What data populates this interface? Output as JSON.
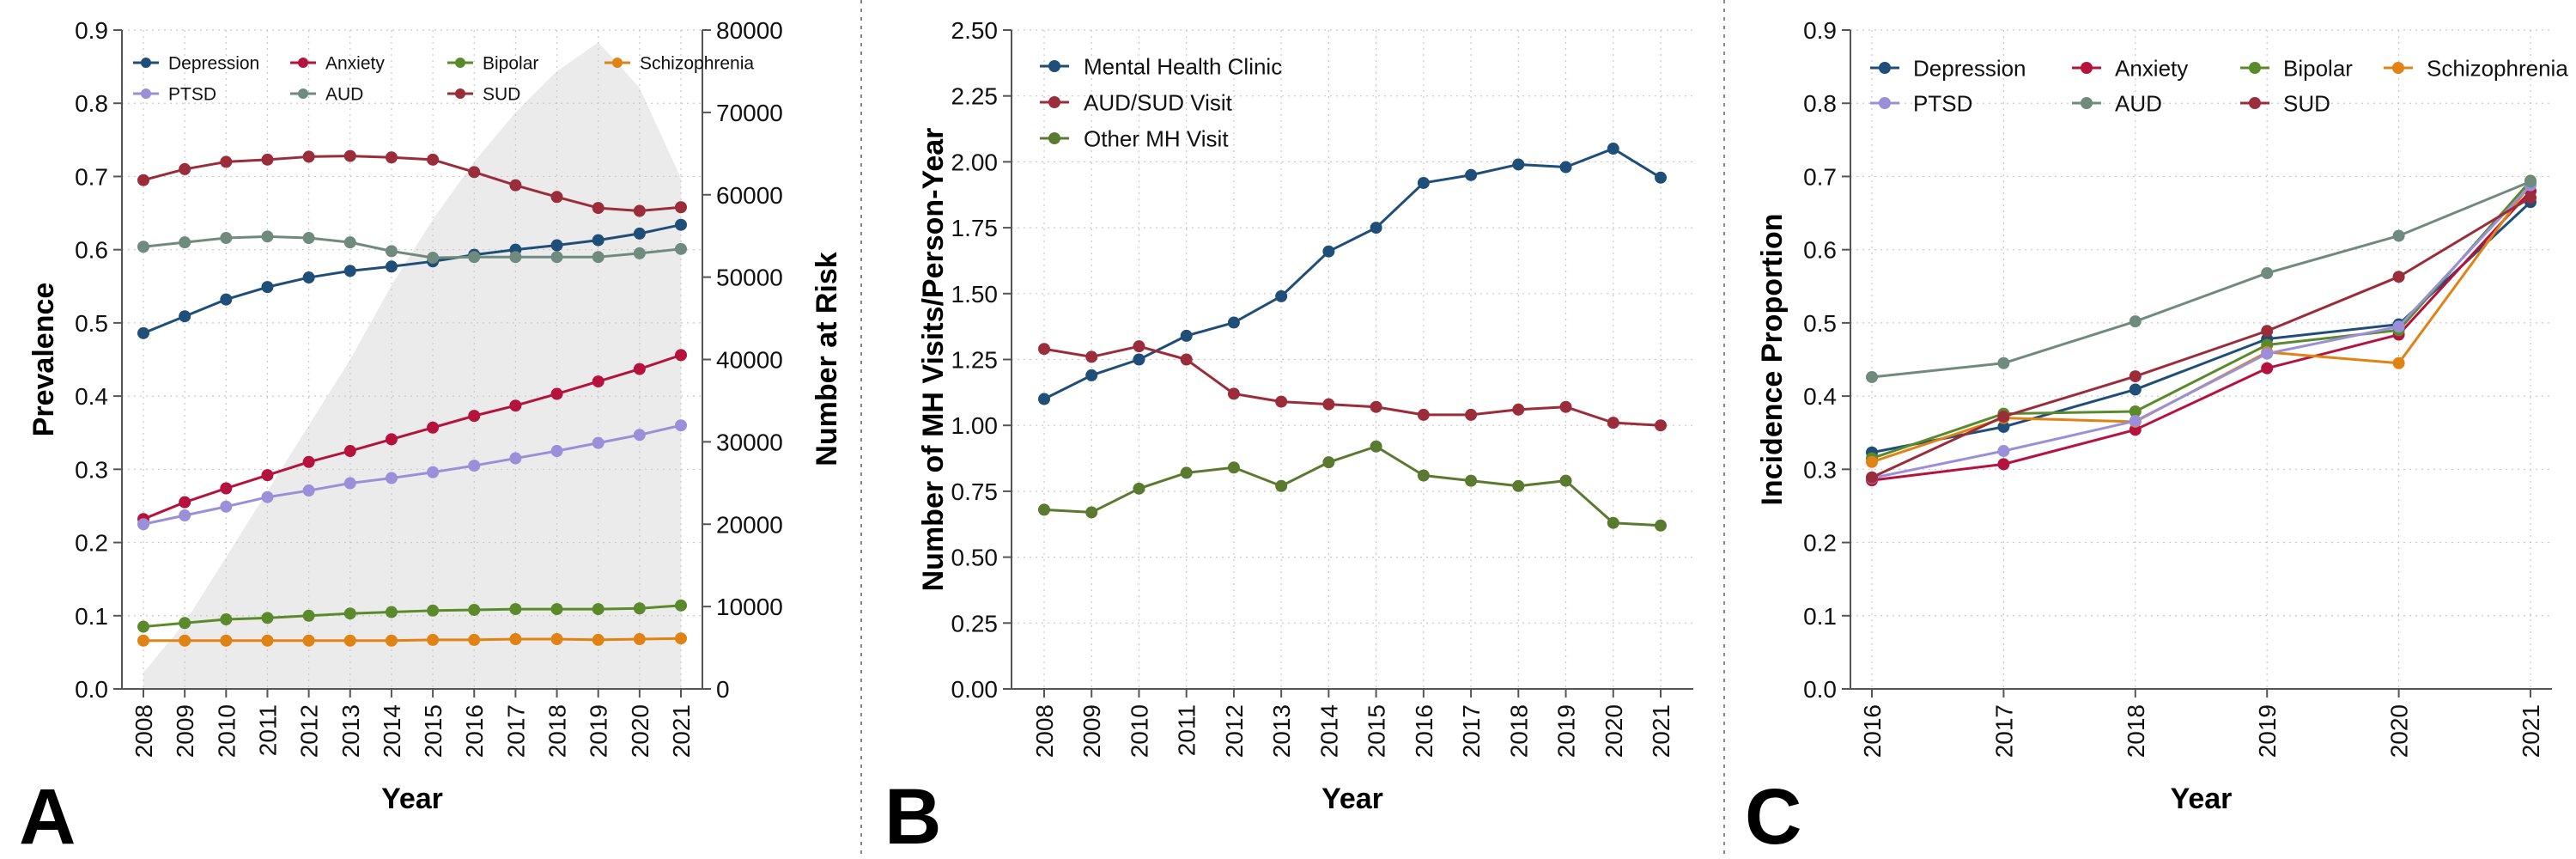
{
  "chart_data": [
    {
      "panel": "A",
      "type": "line",
      "xlabel": "Year",
      "ylabel": "Prevalence",
      "y2label": "Number at Risk",
      "x": [
        2008,
        2009,
        2010,
        2011,
        2012,
        2013,
        2014,
        2015,
        2016,
        2017,
        2018,
        2019,
        2020,
        2021
      ],
      "ylim": [
        0,
        0.9
      ],
      "yticks": [
        "0.0",
        "0.1",
        "0.2",
        "0.3",
        "0.4",
        "0.5",
        "0.6",
        "0.7",
        "0.8",
        "0.9"
      ],
      "y2lim": [
        0,
        80000
      ],
      "y2ticks": [
        "0",
        "10000",
        "20000",
        "30000",
        "40000",
        "50000",
        "60000",
        "70000",
        "80000"
      ],
      "grid": true,
      "legend_position": "top",
      "legend_columns": 4,
      "at_risk": {
        "name": "Number at Risk",
        "color": "#ebebeb",
        "values": [
          2000,
          8000,
          16000,
          24000,
          32000,
          40000,
          49000,
          57000,
          64000,
          70000,
          75000,
          78500,
          73000,
          62000
        ]
      },
      "series": [
        {
          "name": "Depression",
          "color": "#1f4e79",
          "values": [
            0.486,
            0.509,
            0.532,
            0.549,
            0.562,
            0.571,
            0.577,
            0.584,
            0.593,
            0.6,
            0.606,
            0.613,
            0.622,
            0.634
          ]
        },
        {
          "name": "Anxiety",
          "color": "#b5123e",
          "values": [
            0.232,
            0.255,
            0.274,
            0.292,
            0.31,
            0.325,
            0.341,
            0.357,
            0.373,
            0.387,
            0.403,
            0.42,
            0.437,
            0.456
          ]
        },
        {
          "name": "Bipolar",
          "color": "#5a8a2b",
          "values": [
            0.085,
            0.09,
            0.095,
            0.097,
            0.1,
            0.103,
            0.105,
            0.107,
            0.108,
            0.109,
            0.109,
            0.109,
            0.11,
            0.114
          ]
        },
        {
          "name": "Schizophrenia",
          "color": "#e08214",
          "values": [
            0.066,
            0.066,
            0.066,
            0.066,
            0.066,
            0.066,
            0.066,
            0.067,
            0.067,
            0.068,
            0.068,
            0.067,
            0.068,
            0.069
          ]
        },
        {
          "name": "PTSD",
          "color": "#9a8fd8",
          "values": [
            0.225,
            0.237,
            0.249,
            0.262,
            0.271,
            0.281,
            0.288,
            0.296,
            0.305,
            0.315,
            0.325,
            0.336,
            0.347,
            0.36
          ]
        },
        {
          "name": "AUD",
          "color": "#6e8b7e",
          "values": [
            0.604,
            0.61,
            0.616,
            0.618,
            0.616,
            0.61,
            0.598,
            0.589,
            0.59,
            0.59,
            0.59,
            0.59,
            0.595,
            0.601
          ]
        },
        {
          "name": "SUD",
          "color": "#9b2d3a",
          "values": [
            0.695,
            0.71,
            0.72,
            0.723,
            0.727,
            0.728,
            0.726,
            0.723,
            0.706,
            0.688,
            0.672,
            0.657,
            0.653,
            0.658
          ]
        }
      ]
    },
    {
      "panel": "B",
      "type": "line",
      "xlabel": "Year",
      "ylabel": "Number of MH Visits/Person-Year",
      "x": [
        2008,
        2009,
        2010,
        2011,
        2012,
        2013,
        2014,
        2015,
        2016,
        2017,
        2018,
        2019,
        2020,
        2021
      ],
      "ylim": [
        0,
        2.5
      ],
      "yticks": [
        "0.00",
        "0.25",
        "0.50",
        "0.75",
        "1.00",
        "1.25",
        "1.50",
        "1.75",
        "2.00",
        "2.25",
        "2.50"
      ],
      "grid": true,
      "legend_position": "top-left",
      "legend_columns": 1,
      "series": [
        {
          "name": "Mental Health Clinic",
          "color": "#1f4e79",
          "values": [
            1.1,
            1.19,
            1.25,
            1.34,
            1.39,
            1.49,
            1.66,
            1.75,
            1.92,
            1.95,
            1.99,
            1.98,
            2.05,
            1.94
          ]
        },
        {
          "name": "AUD/SUD Visit",
          "color": "#9b2d3a",
          "values": [
            1.29,
            1.26,
            1.3,
            1.25,
            1.12,
            1.09,
            1.08,
            1.07,
            1.04,
            1.04,
            1.06,
            1.07,
            1.01,
            1.0
          ]
        },
        {
          "name": "Other MH Visit",
          "color": "#5a7a30",
          "values": [
            0.68,
            0.67,
            0.76,
            0.82,
            0.84,
            0.77,
            0.86,
            0.92,
            0.81,
            0.79,
            0.77,
            0.79,
            0.63,
            0.62
          ]
        }
      ]
    },
    {
      "panel": "C",
      "type": "line",
      "xlabel": "Year",
      "ylabel": "Incidence Proportion",
      "x": [
        2016,
        2017,
        2018,
        2019,
        2020,
        2021
      ],
      "ylim": [
        0,
        0.9
      ],
      "yticks": [
        "0.0",
        "0.1",
        "0.2",
        "0.3",
        "0.4",
        "0.5",
        "0.6",
        "0.7",
        "0.8",
        "0.9"
      ],
      "grid": true,
      "legend_position": "top",
      "legend_columns": 4,
      "series": [
        {
          "name": "Depression",
          "color": "#1f4e79",
          "values": [
            0.323,
            0.358,
            0.409,
            0.478,
            0.498,
            0.665
          ]
        },
        {
          "name": "Anxiety",
          "color": "#b5123e",
          "values": [
            0.285,
            0.307,
            0.354,
            0.438,
            0.484,
            0.68
          ]
        },
        {
          "name": "Bipolar",
          "color": "#5a8a2b",
          "values": [
            0.315,
            0.376,
            0.379,
            0.47,
            0.49,
            0.694
          ]
        },
        {
          "name": "Schizophrenia",
          "color": "#e08214",
          "values": [
            0.31,
            0.37,
            0.365,
            0.46,
            0.445,
            0.69
          ]
        },
        {
          "name": "PTSD",
          "color": "#9a8fd8",
          "values": [
            0.288,
            0.325,
            0.366,
            0.458,
            0.495,
            0.688
          ]
        },
        {
          "name": "AUD",
          "color": "#6e8b7e",
          "values": [
            0.426,
            0.445,
            0.502,
            0.568,
            0.619,
            0.693
          ]
        },
        {
          "name": "SUD",
          "color": "#9b2d3a",
          "values": [
            0.289,
            0.372,
            0.427,
            0.489,
            0.563,
            0.671
          ]
        }
      ]
    }
  ]
}
